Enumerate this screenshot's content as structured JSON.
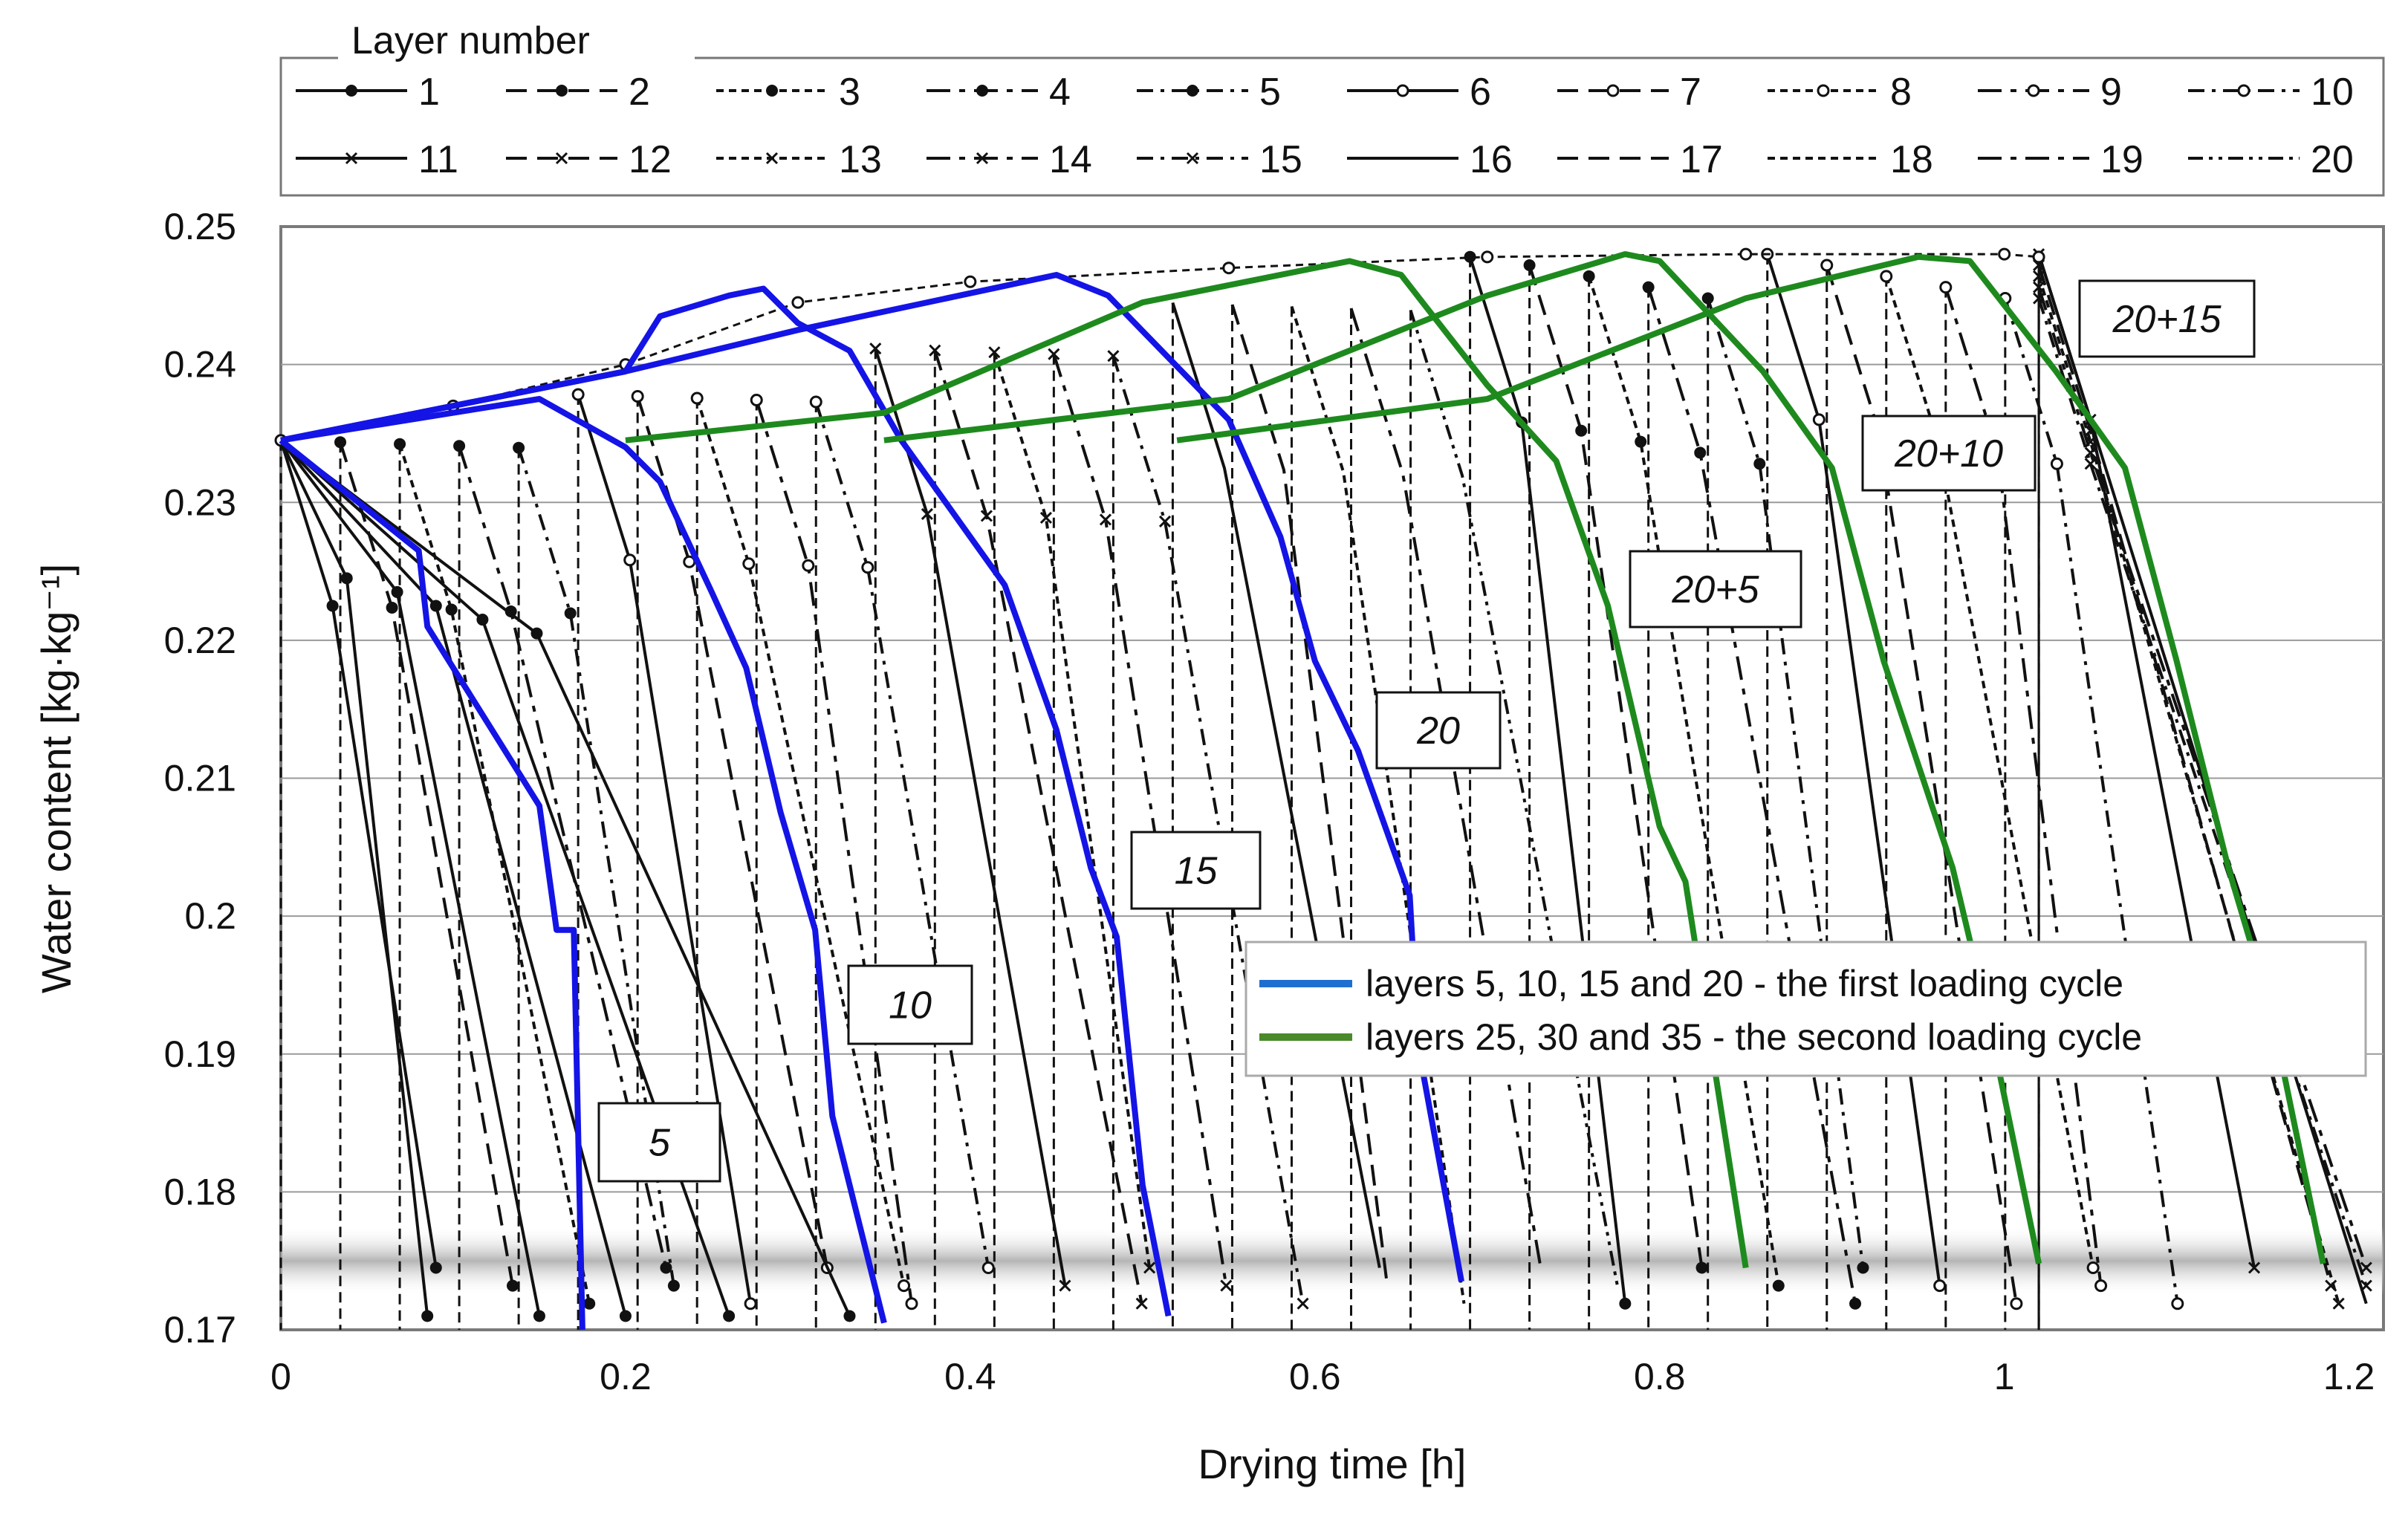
{
  "chart_data": {
    "type": "line",
    "title": "",
    "xlabel": "Drying time [h]",
    "ylabel": "Water content [kg·kg⁻¹]",
    "xlim": [
      0,
      1.22
    ],
    "ylim": [
      0.17,
      0.25
    ],
    "x_ticks": [
      "0",
      "0.2",
      "0.4",
      "0.6",
      "0.8",
      "1",
      "1.2"
    ],
    "y_ticks": [
      "0.17",
      "0.18",
      "0.19",
      "0.2",
      "0.21",
      "0.22",
      "0.23",
      "0.24",
      "0.25"
    ],
    "layer_legend_title": "Layer number",
    "layer_legend": [
      "1",
      "2",
      "3",
      "4",
      "5",
      "6",
      "7",
      "8",
      "9",
      "10",
      "11",
      "12",
      "13",
      "14",
      "15",
      "16",
      "17",
      "18",
      "19",
      "20"
    ],
    "cycle_legend": [
      {
        "label": "layers 5, 10, 15 and 20 - the first loading cycle",
        "color": "#1f6fd0"
      },
      {
        "label": "layers 25, 30 and 35 - the second loading cycle",
        "color": "#4a8a2a"
      }
    ],
    "annotations": [
      "5",
      "10",
      "15",
      "20",
      "20+5",
      "20+10",
      "20+15"
    ],
    "highlight_band": [
      0.174,
      0.176
    ],
    "series": [
      {
        "name": "Layer 5",
        "cycle": "first",
        "x": [
          0,
          0.08,
          0.085,
          0.15,
          0.16,
          0.17,
          0.175
        ],
        "y": [
          0.2345,
          0.2265,
          0.221,
          0.208,
          0.199,
          0.199,
          0.17
        ]
      },
      {
        "name": "Layer 10",
        "cycle": "first",
        "x": [
          0,
          0.15,
          0.2,
          0.22,
          0.25,
          0.27,
          0.29,
          0.31,
          0.32,
          0.35
        ],
        "y": [
          0.2345,
          0.2375,
          0.234,
          0.2315,
          0.2235,
          0.218,
          0.2075,
          0.199,
          0.1855,
          0.1705
        ]
      },
      {
        "name": "Layer 15",
        "cycle": "first",
        "x": [
          0,
          0.2,
          0.22,
          0.26,
          0.28,
          0.3,
          0.33,
          0.36,
          0.4,
          0.42,
          0.45,
          0.47,
          0.485,
          0.5,
          0.515
        ],
        "y": [
          0.2345,
          0.2395,
          0.2435,
          0.245,
          0.2455,
          0.243,
          0.241,
          0.2345,
          0.2275,
          0.224,
          0.2135,
          0.2035,
          0.1985,
          0.1805,
          0.171
        ]
      },
      {
        "name": "Layer 20",
        "cycle": "first",
        "x": [
          0,
          0.2,
          0.3,
          0.45,
          0.48,
          0.55,
          0.58,
          0.6,
          0.625,
          0.655,
          0.66,
          0.685
        ],
        "y": [
          0.2345,
          0.2395,
          0.2425,
          0.2465,
          0.245,
          0.236,
          0.2275,
          0.2185,
          0.212,
          0.2015,
          0.1905,
          0.1735
        ]
      },
      {
        "name": "Layer 25",
        "cycle": "second",
        "x": [
          0.2,
          0.35,
          0.5,
          0.62,
          0.65,
          0.7,
          0.74,
          0.77,
          0.8,
          0.815,
          0.85
        ],
        "y": [
          0.2345,
          0.2365,
          0.2445,
          0.2475,
          0.2465,
          0.2385,
          0.233,
          0.2225,
          0.2065,
          0.2025,
          0.1745
        ]
      },
      {
        "name": "Layer 30",
        "cycle": "second",
        "x": [
          0.35,
          0.55,
          0.7,
          0.78,
          0.8,
          0.86,
          0.9,
          0.93,
          0.97,
          0.99,
          1.02
        ],
        "y": [
          0.2345,
          0.2375,
          0.245,
          0.248,
          0.2475,
          0.2395,
          0.2325,
          0.2185,
          0.2035,
          0.193,
          0.1748
        ]
      },
      {
        "name": "Layer 35",
        "cycle": "second",
        "x": [
          0.52,
          0.7,
          0.85,
          0.95,
          0.98,
          1.03,
          1.07,
          1.1,
          1.13,
          1.155,
          1.185
        ],
        "y": [
          0.2345,
          0.2375,
          0.2448,
          0.2478,
          0.2475,
          0.2395,
          0.2325,
          0.2185,
          0.2035,
          0.193,
          0.1748
        ]
      }
    ]
  }
}
